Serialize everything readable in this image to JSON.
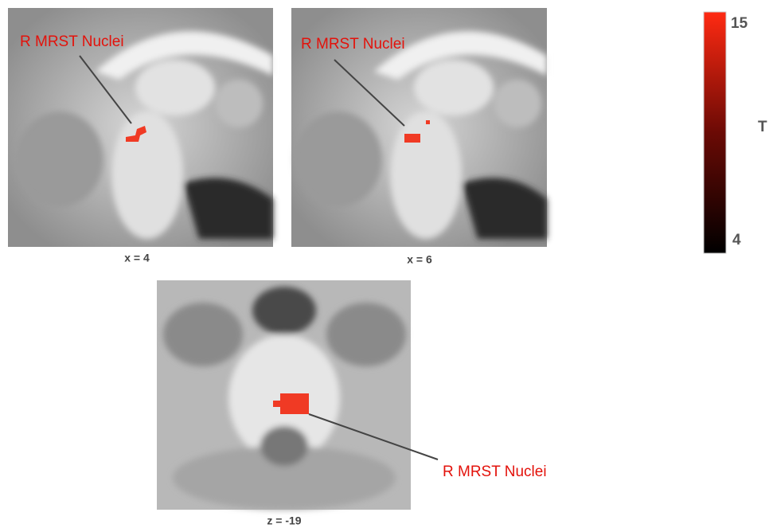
{
  "panels": [
    {
      "caption": "x = 4",
      "annotation": "R MRST Nuclei"
    },
    {
      "caption": "x = 6",
      "annotation": "R MRST Nuclei"
    },
    {
      "caption": "z = -19",
      "annotation": "R MRST Nuclei"
    }
  ],
  "colorbar": {
    "title": "T",
    "max_label": "15",
    "min_label": "4"
  }
}
